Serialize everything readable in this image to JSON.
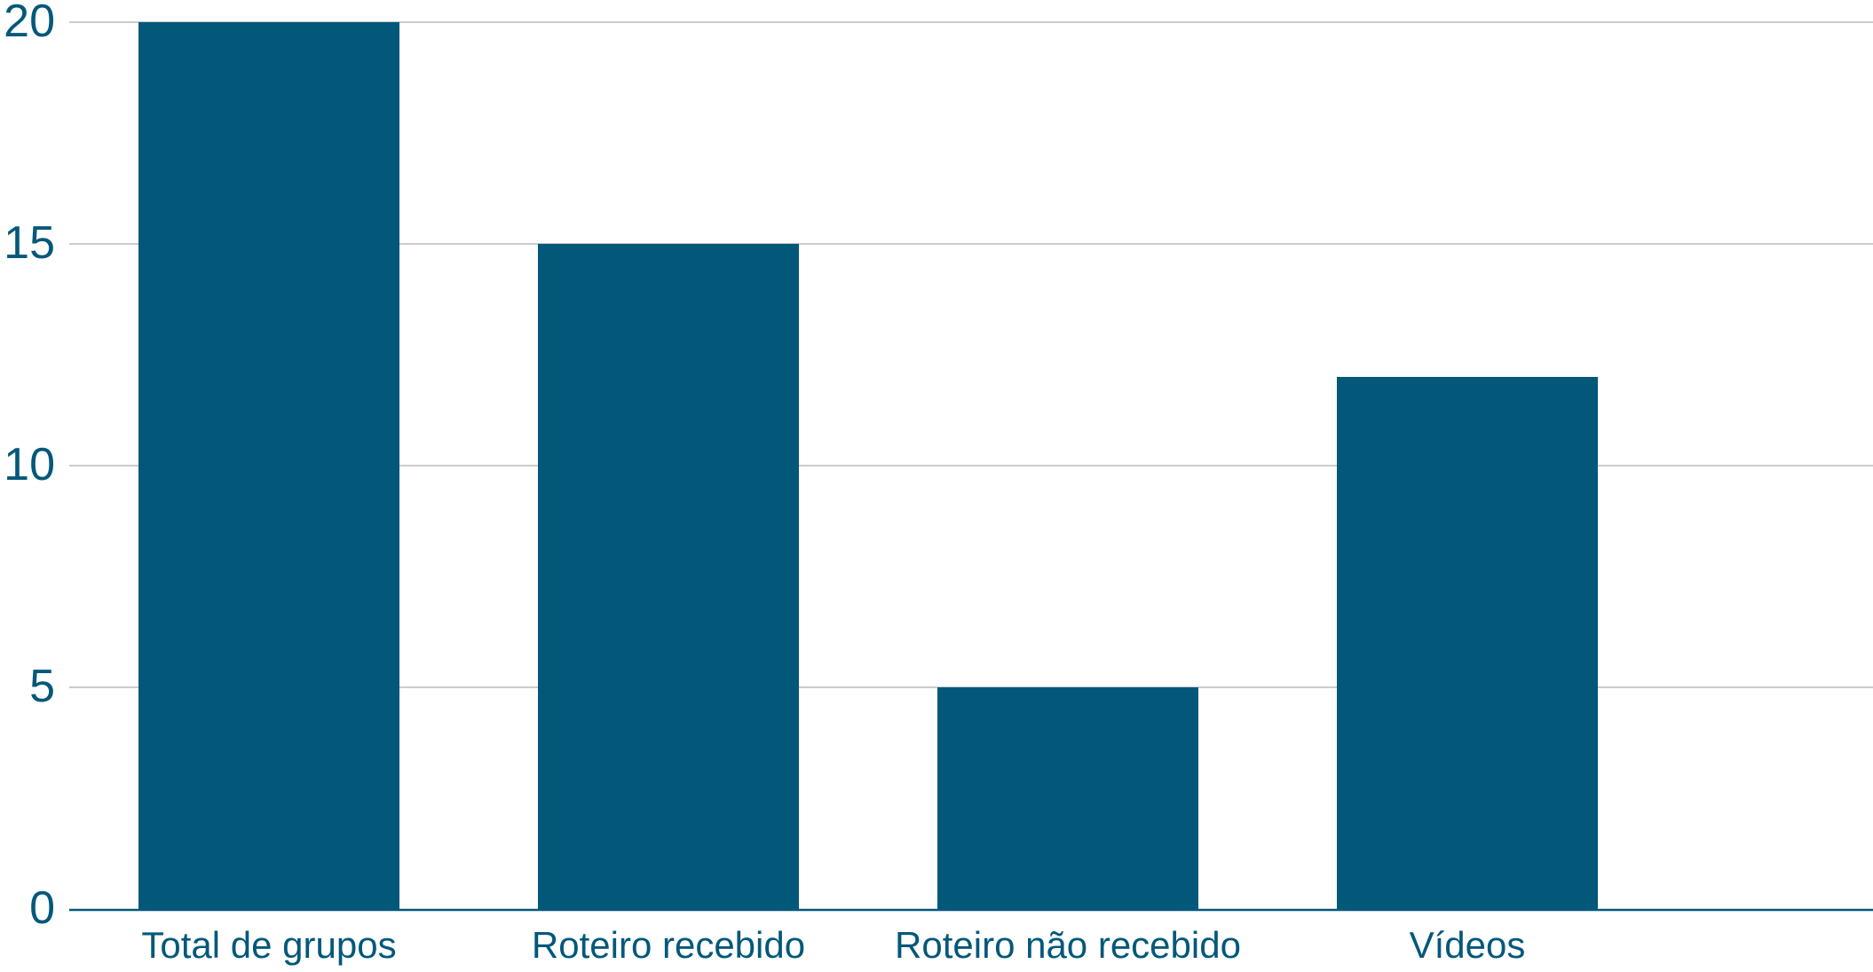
{
  "chart_data": {
    "type": "bar",
    "title": "",
    "xlabel": "",
    "ylabel": "",
    "categories": [
      "Total de grupos",
      "Roteiro recebido",
      "Roteiro não recebido",
      "Vídeos"
    ],
    "values": [
      20,
      15,
      5,
      12
    ],
    "ylim": [
      0,
      20
    ],
    "yticks": [
      "0",
      "5",
      "10",
      "15",
      "20"
    ],
    "grid": true,
    "legend": "none"
  },
  "colors": {
    "bar": "#03587a",
    "axis_text": "#03587a",
    "grid": "#cccccc",
    "baseline": "#03587a"
  }
}
